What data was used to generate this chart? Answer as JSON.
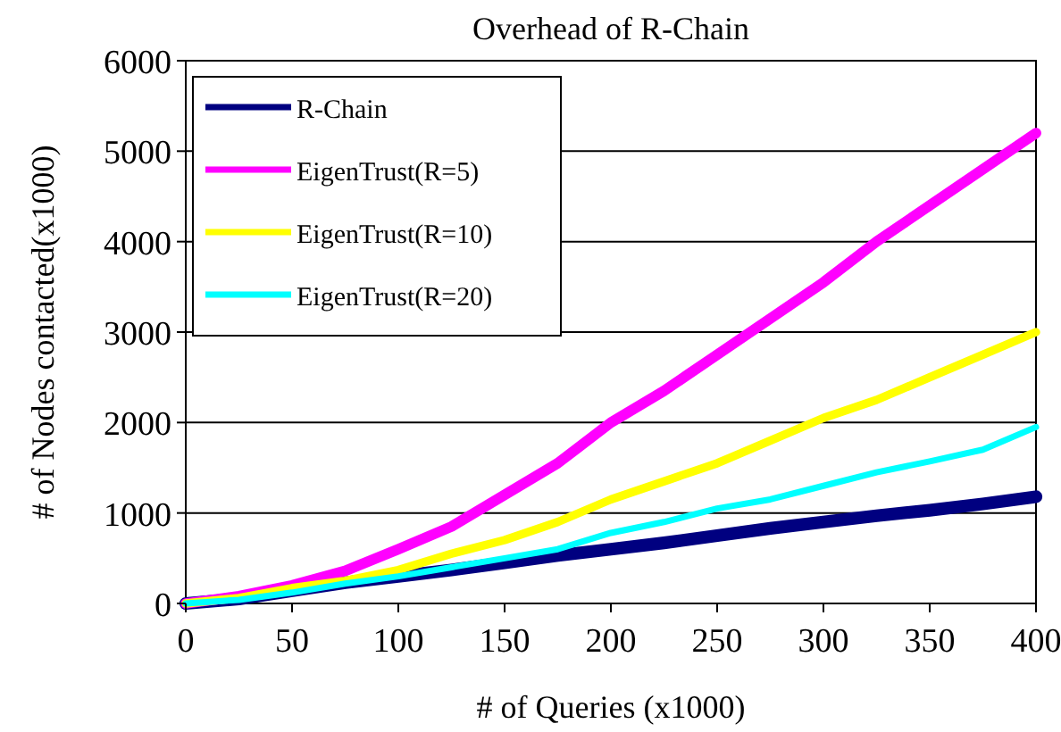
{
  "chart_data": {
    "type": "line",
    "title": "Overhead of R-Chain",
    "xlabel": "# of Queries (x1000)",
    "ylabel": "# of Nodes contacted(x1000)",
    "x": [
      0,
      25,
      50,
      75,
      100,
      125,
      150,
      175,
      200,
      225,
      250,
      275,
      300,
      325,
      350,
      375,
      400
    ],
    "series": [
      {
        "name": "R-Chain",
        "color": "#000080",
        "values": [
          0,
          50,
          140,
          230,
          300,
          370,
          450,
          530,
          600,
          670,
          750,
          830,
          900,
          970,
          1030,
          1100,
          1180
        ]
      },
      {
        "name": "EigenTrust(R=5)",
        "color": "#ff00ff",
        "values": [
          0,
          80,
          200,
          360,
          600,
          850,
          1200,
          1550,
          2000,
          2350,
          2750,
          3150,
          3550,
          4000,
          4400,
          4800,
          5200
        ]
      },
      {
        "name": "EigenTrust(R=10)",
        "color": "#ffff00",
        "values": [
          0,
          60,
          170,
          250,
          370,
          550,
          700,
          900,
          1150,
          1350,
          1550,
          1800,
          2050,
          2250,
          2500,
          2750,
          3000
        ]
      },
      {
        "name": "EigenTrust(R=20)",
        "color": "#00ffff",
        "values": [
          0,
          40,
          120,
          220,
          300,
          400,
          500,
          600,
          780,
          900,
          1050,
          1150,
          1300,
          1450,
          1570,
          1700,
          1950
        ]
      }
    ],
    "xlim": [
      0,
      400
    ],
    "xticks": [
      0,
      50,
      100,
      150,
      200,
      250,
      300,
      350,
      400
    ],
    "ylim": [
      0,
      6000
    ],
    "yticks": [
      0,
      1000,
      2000,
      3000,
      4000,
      5000,
      6000
    ],
    "grid": "y",
    "legend": "top left",
    "marker": "none",
    "line_style": "solid"
  }
}
